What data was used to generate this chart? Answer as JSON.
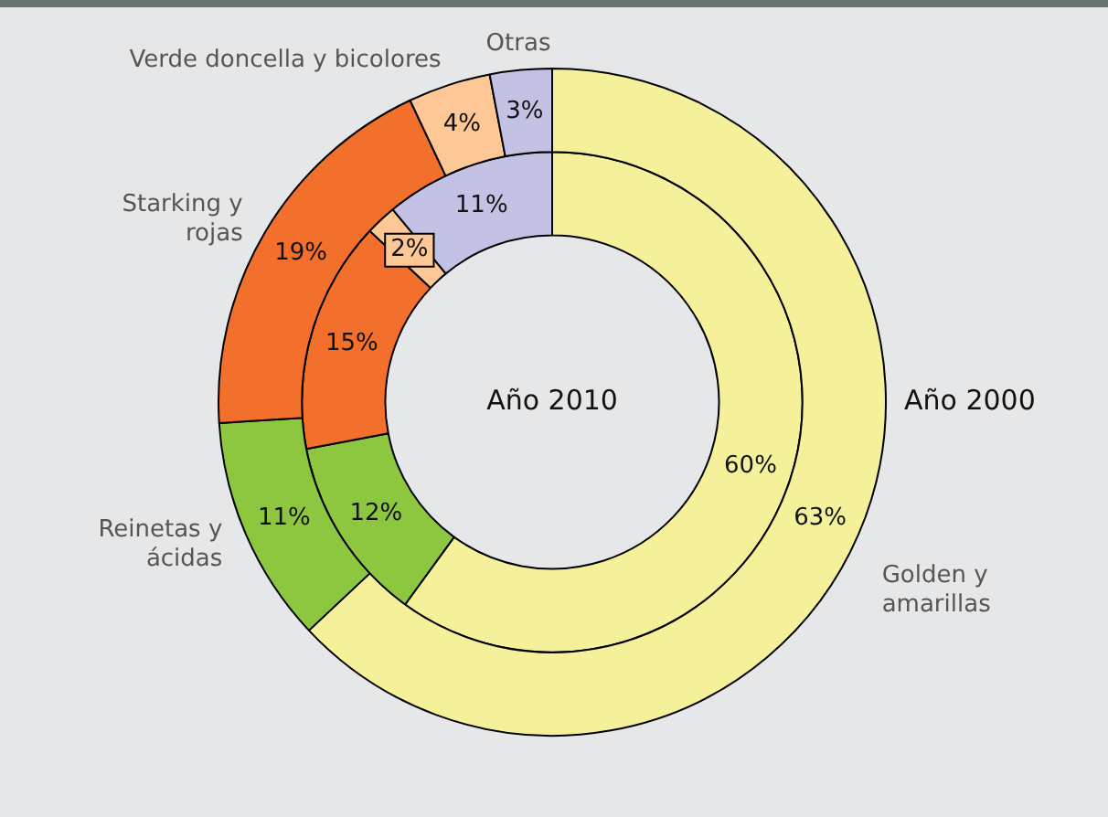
{
  "chart_data": {
    "type": "donut",
    "categories": [
      "Golden y amarillas",
      "Reinetas y ácidas",
      "Starking y rojas",
      "Verde doncella y bicolores",
      "Otras"
    ],
    "colors": [
      "#f5f09a",
      "#8dc63f",
      "#f26f2c",
      "#fdc896",
      "#c4c2e4"
    ],
    "series": [
      {
        "name": "Año 2000",
        "values": [
          63,
          11,
          19,
          4,
          3
        ],
        "value_labels": [
          "63%",
          "11%",
          "19%",
          "4%",
          "3%"
        ]
      },
      {
        "name": "Año 2010",
        "values": [
          60,
          12,
          15,
          2,
          11
        ],
        "value_labels": [
          "60%",
          "12%",
          "15%",
          "2%",
          "11%"
        ]
      }
    ],
    "legend": false
  }
}
